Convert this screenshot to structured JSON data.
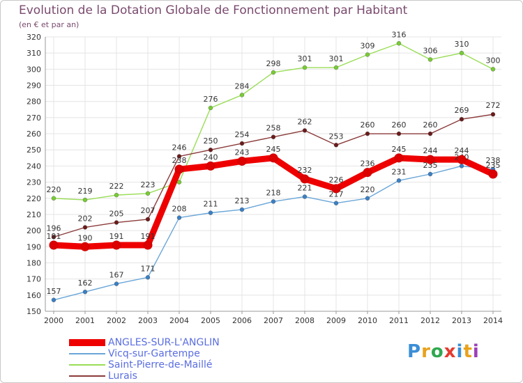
{
  "chart_data": {
    "type": "line",
    "title": "Evolution de la Dotation Globale de Fonctionnement par Habitant",
    "subtitle": "(en € et par an)",
    "xlabel": "",
    "ylabel": "",
    "ylim": [
      150,
      320
    ],
    "ytick_step": 10,
    "grid": true,
    "categories": [
      "2000",
      "2001",
      "2002",
      "2003",
      "2004",
      "2005",
      "2006",
      "2007",
      "2008",
      "2009",
      "2010",
      "2011",
      "2012",
      "2013",
      "2014"
    ],
    "series": [
      {
        "name": "Saint-Pierre-de-Maillé",
        "color": "#99dd55",
        "marker": "#77cc33",
        "values": [
          220,
          219,
          222,
          223,
          230,
          276,
          284,
          298,
          301,
          301,
          309,
          316,
          306,
          310,
          300
        ],
        "labels": [
          "220",
          "219",
          "222",
          "223",
          "",
          "276",
          "284",
          "298",
          "301",
          "301",
          "309",
          "316",
          "306",
          "310",
          "300"
        ]
      },
      {
        "name": "Lurais",
        "color": "#8b3a3a",
        "marker": "#6b1a1a",
        "values": [
          196,
          202,
          205,
          207,
          246,
          250,
          254,
          258,
          262,
          253,
          260,
          260,
          260,
          269,
          272
        ],
        "labels": [
          "196",
          "202",
          "205",
          "207",
          "246",
          "250",
          "254",
          "258",
          "262",
          "253",
          "260",
          "260",
          "260",
          "269",
          "272"
        ]
      },
      {
        "name": "Vicq-sur-Gartempe",
        "color": "#6aa6d8",
        "marker": "#3a7fc4",
        "values": [
          157,
          162,
          167,
          171,
          208,
          211,
          213,
          218,
          221,
          217,
          220,
          231,
          235,
          240,
          238
        ],
        "labels": [
          "157",
          "162",
          "167",
          "171",
          "208",
          "211",
          "213",
          "218",
          "221",
          "217",
          "220",
          "231",
          "235",
          "240",
          "238"
        ]
      },
      {
        "name": "ANGLES-SUR-L'ANGLIN",
        "color": "#ee0000",
        "marker": "#dd0000",
        "values": [
          191,
          190,
          191,
          191,
          238,
          240,
          243,
          245,
          232,
          226,
          236,
          245,
          244,
          244,
          235
        ],
        "labels": [
          "191",
          "190",
          "191",
          "191",
          "238",
          "240",
          "243",
          "245",
          "232",
          "226",
          "236",
          "245",
          "244",
          "244",
          "235"
        ],
        "thick": true
      }
    ],
    "legend": [
      "ANGLES-SUR-L'ANGLIN",
      "Vicq-sur-Gartempe",
      "Saint-Pierre-de-Maillé",
      "Lurais"
    ],
    "legend_colors": [
      "#ee0000",
      "#6aa6d8",
      "#99dd55",
      "#8b3a3a"
    ],
    "legend_placement": "bottom-left"
  },
  "branding": {
    "logo_text": "Proxiti"
  }
}
